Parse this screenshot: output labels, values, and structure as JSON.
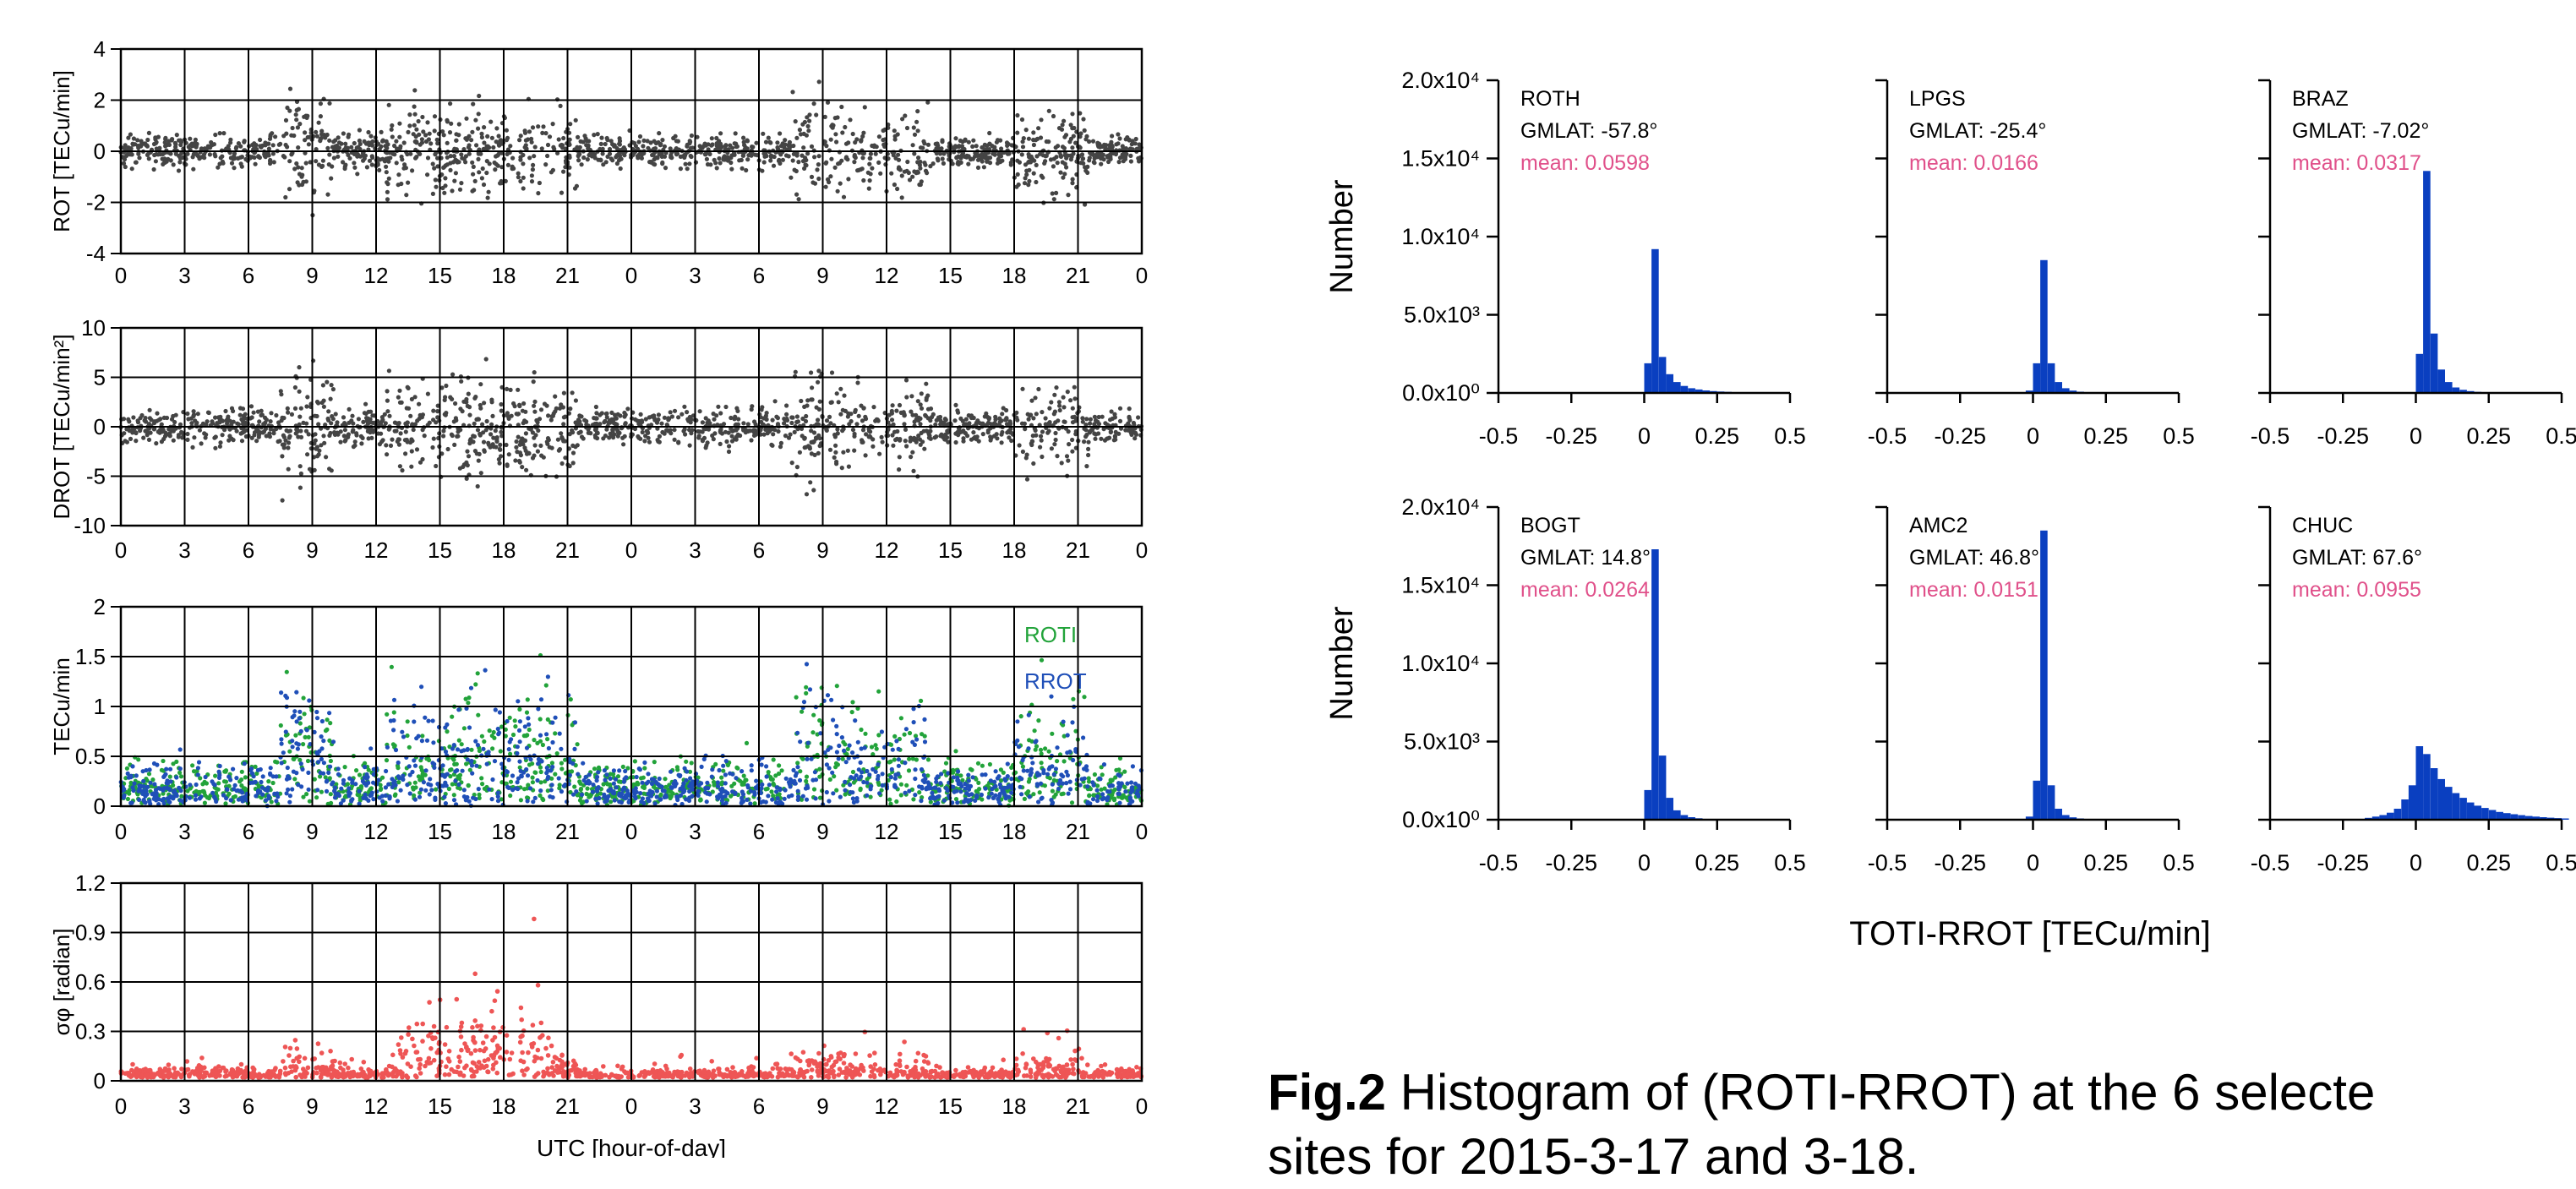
{
  "caption": {
    "label": "Fig.2",
    "line1": " Histogram of (ROTI-RROT) at the 6 selecte",
    "line2": "sites for 2015-3-17 and 3-18."
  },
  "colors": {
    "rot": "#444444",
    "roti": "#22a33a",
    "rrot": "#1f4fb8",
    "sigma": "#ee5555",
    "hist": "#0a3fc0",
    "mean_text": "#e0508a",
    "grid": "#000000"
  },
  "chart_data": [
    {
      "id": "rot",
      "type": "scatter",
      "ylabel": "ROT [TECu/min]",
      "ylim": [
        -4,
        4
      ],
      "yticks": [
        "4",
        "2",
        "0",
        "-2",
        "-4"
      ],
      "xticks": [
        "0",
        "3",
        "6",
        "9",
        "12",
        "15",
        "18",
        "21",
        "0",
        "3",
        "6",
        "9",
        "12",
        "15",
        "18",
        "21",
        "0"
      ],
      "x_range_hours": [
        0,
        48
      ],
      "grid": true,
      "series": [
        {
          "name": "",
          "amplitude": 1.6
        }
      ]
    },
    {
      "id": "drot",
      "type": "scatter",
      "ylabel": "DROT [TECu/min²]",
      "ylim": [
        -10,
        10
      ],
      "yticks": [
        "10",
        "5",
        "0",
        "-5",
        "-10"
      ],
      "xticks": [
        "0",
        "3",
        "6",
        "9",
        "12",
        "15",
        "18",
        "21",
        "0",
        "3",
        "6",
        "9",
        "12",
        "15",
        "18",
        "21",
        "0"
      ],
      "x_range_hours": [
        0,
        48
      ],
      "grid": true,
      "series": [
        {
          "name": "",
          "amplitude": 4.5
        }
      ]
    },
    {
      "id": "roti",
      "type": "scatter",
      "ylabel": "TECu/min",
      "ylim": [
        0,
        2
      ],
      "yticks": [
        "2",
        "1.5",
        "1",
        "0.5",
        "0"
      ],
      "xticks": [
        "0",
        "3",
        "6",
        "9",
        "12",
        "15",
        "18",
        "21",
        "0",
        "3",
        "6",
        "9",
        "12",
        "15",
        "18",
        "21",
        "0"
      ],
      "x_range_hours": [
        0,
        48
      ],
      "grid": true,
      "legend": [
        "ROTI",
        "RROT"
      ],
      "legend_placement": "top-right",
      "series": [
        {
          "name": "ROTI",
          "peak": 1.9
        },
        {
          "name": "RROT",
          "peak": 1.7
        }
      ]
    },
    {
      "id": "sigma",
      "type": "scatter",
      "ylabel": "σφ [radian]",
      "ylim": [
        0,
        1.2
      ],
      "yticks": [
        "1.2",
        "0.9",
        "0.6",
        "0.3",
        "0"
      ],
      "xticks": [
        "0",
        "3",
        "6",
        "9",
        "12",
        "15",
        "18",
        "21",
        "0",
        "3",
        "6",
        "9",
        "12",
        "15",
        "18",
        "21",
        "0"
      ],
      "x_range_hours": [
        0,
        48
      ],
      "grid": true,
      "xlabel": "UTC [hour-of-day]",
      "series": [
        {
          "name": "",
          "peak": 1.15
        }
      ]
    },
    {
      "id": "hist",
      "type": "bar",
      "ylabel": "Number",
      "xlabel": "TOTI-RROT [TECu/min]",
      "ylim": [
        0,
        20000
      ],
      "yticks": [
        "2.0x10⁴",
        "1.5x10⁴",
        "1.0x10⁴",
        "5.0x10³",
        "0.0x10⁰"
      ],
      "xlim": [
        -0.5,
        0.5
      ],
      "xticks": [
        "-0.5",
        "-0.25",
        "0",
        "0.25",
        "0.5"
      ],
      "bin_width": 0.025,
      "panels": [
        {
          "site": "ROTH",
          "gmlat": "GMLAT: -57.8°",
          "mean": "mean: 0.0598",
          "bins_from": 0.0,
          "counts": [
            1900,
            9200,
            2300,
            1200,
            700,
            450,
            300,
            220,
            160,
            120,
            90,
            70,
            55,
            40,
            30,
            25,
            20,
            15,
            10,
            8
          ]
        },
        {
          "site": "LPGS",
          "gmlat": "GMLAT: -25.4°",
          "mean": "mean: 0.0166",
          "bins_from": -0.025,
          "counts": [
            150,
            1900,
            8500,
            1900,
            700,
            300,
            150,
            80,
            40,
            20,
            10
          ]
        },
        {
          "site": "BRAZ",
          "gmlat": "GMLAT: -7.02°",
          "mean": "mean: 0.0317",
          "bins_from": 0.0,
          "counts": [
            2500,
            14200,
            3800,
            1500,
            700,
            350,
            200,
            120,
            70,
            40,
            25,
            15,
            10
          ]
        },
        {
          "site": "BOGT",
          "gmlat": "GMLAT: 14.8°",
          "mean": "mean: 0.0264",
          "bins_from": 0.0,
          "counts": [
            1900,
            17300,
            4100,
            1400,
            600,
            300,
            160,
            90,
            50,
            30,
            15,
            10
          ]
        },
        {
          "site": "AMC2",
          "gmlat": "GMLAT: 46.8°",
          "mean": "mean: 0.0151",
          "bins_from": -0.025,
          "counts": [
            200,
            2500,
            18500,
            2200,
            700,
            300,
            150,
            80,
            40,
            20
          ]
        },
        {
          "site": "CHUC",
          "gmlat": "GMLAT: 67.6°",
          "mean": "mean: 0.0955",
          "bins_from": -0.175,
          "counts": [
            120,
            200,
            300,
            450,
            700,
            1300,
            2200,
            4700,
            4200,
            3300,
            2600,
            2100,
            1700,
            1400,
            1100,
            900,
            750,
            620,
            500,
            420,
            350,
            290,
            240,
            200,
            160,
            130,
            100,
            80
          ]
        }
      ]
    }
  ]
}
